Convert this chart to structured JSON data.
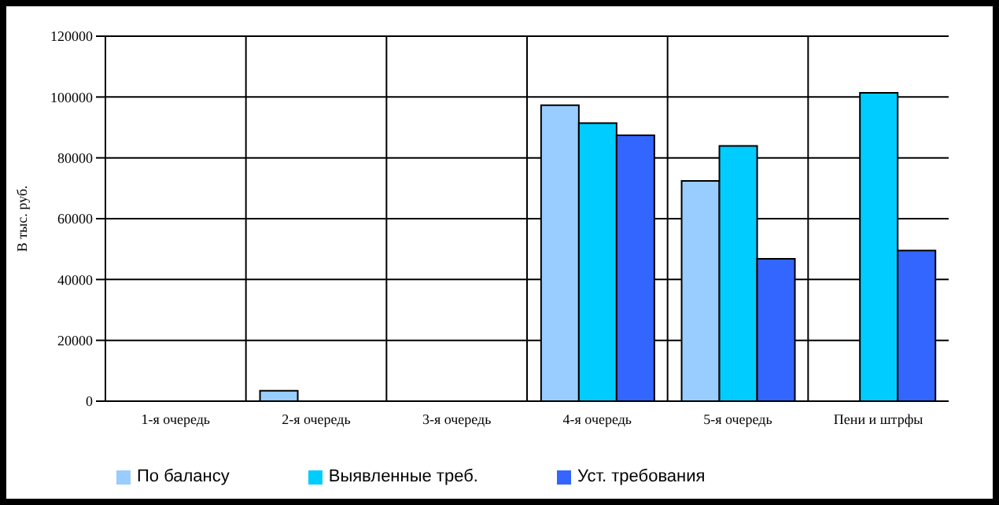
{
  "chart_data": {
    "type": "bar",
    "ylabel": "В тыс. руб.",
    "categories": [
      "1-я очередь",
      "2-я очередь",
      "3-я очередь",
      "4-я очередь",
      "5-я очередь",
      "Пени и штрфы"
    ],
    "series": [
      {
        "name": "По балансу",
        "color": "#99ccff",
        "values": [
          null,
          3400,
          null,
          97300,
          72400,
          null
        ]
      },
      {
        "name": "Выявленные треб.",
        "color": "#00ccff",
        "values": [
          null,
          null,
          null,
          91400,
          83900,
          101400
        ]
      },
      {
        "name": "Уст. требования",
        "color": "#3366ff",
        "values": [
          null,
          null,
          null,
          87400,
          46800,
          49500
        ]
      }
    ],
    "ylim": [
      0,
      120000
    ],
    "yticks": [
      0,
      20000,
      40000,
      60000,
      80000,
      100000,
      120000
    ],
    "grid": true,
    "legend": "bottom left"
  }
}
